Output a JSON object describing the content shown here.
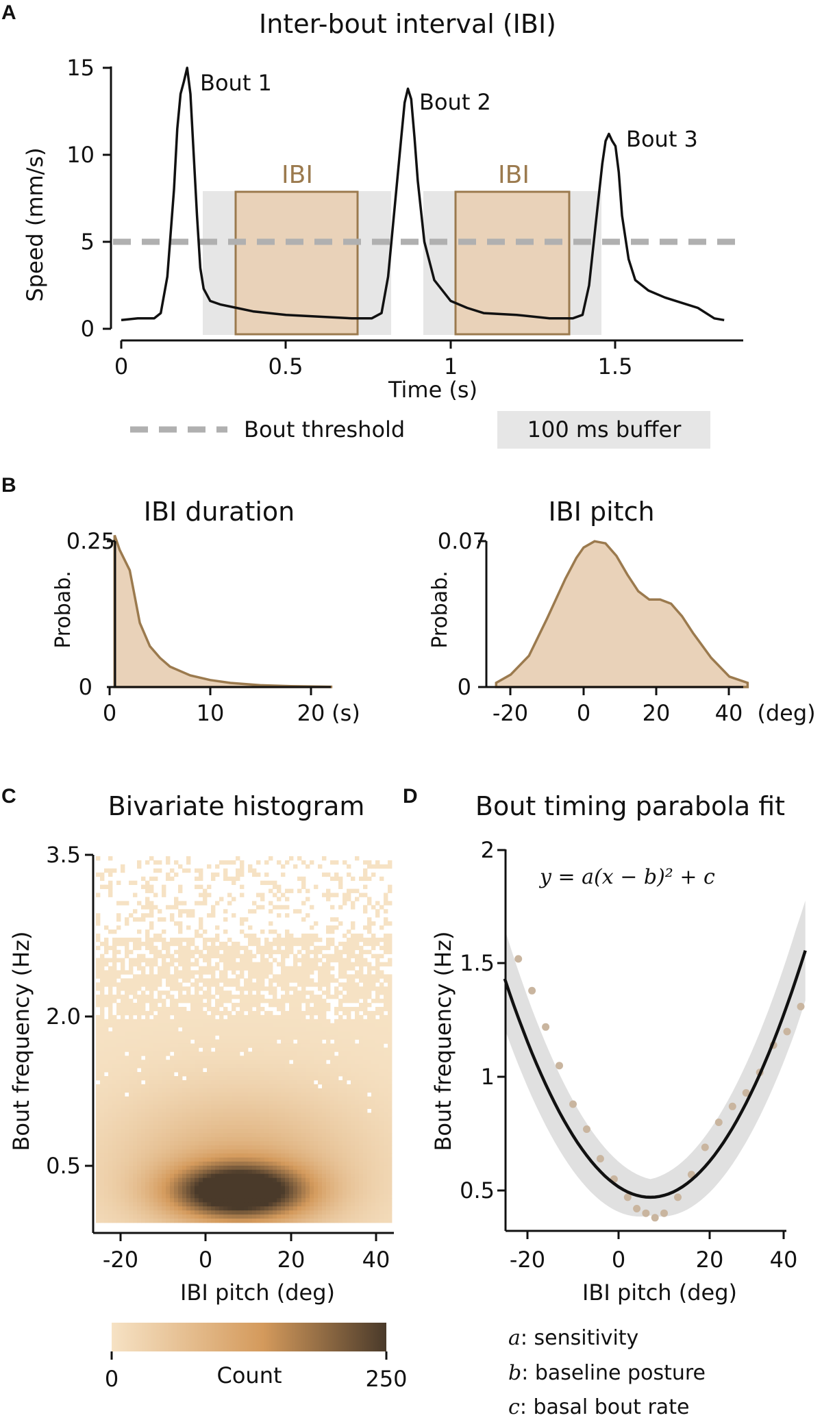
{
  "colors": {
    "ibi_fill": "#e9d2b9",
    "ibi_stroke": "#9b7a4e",
    "buffer": "#e6e6e6",
    "threshold": "#b0b0b0",
    "trace": "#111111",
    "fit_band": "#e0e0e0",
    "points": "#c9b59f",
    "cmap_low": "#f6e2c4",
    "cmap_mid": "#d49a5c",
    "cmap_high": "#4a3a2a"
  },
  "panel_a": {
    "letter": "A",
    "title": "Inter-bout interval (IBI)",
    "ylabel": "Speed (mm/s)",
    "xlabel": "Time (s)",
    "yticks": [
      "0",
      "5",
      "10",
      "15"
    ],
    "xticks": [
      "0",
      "0.5",
      "1",
      "1.5"
    ],
    "bout_labels": [
      "Bout 1",
      "Bout 2",
      "Bout 3"
    ],
    "ibi_label": "IBI",
    "legend_threshold": "Bout threshold",
    "legend_buffer": "100 ms buffer"
  },
  "panel_b": {
    "letter": "B",
    "left_title": "IBI duration",
    "right_title": "IBI pitch",
    "ylabel": "Probab.",
    "left_yticks": [
      "0",
      "0.25"
    ],
    "left_xticks": [
      "0",
      "10",
      "20"
    ],
    "left_unit": "(s)",
    "right_yticks": [
      "0",
      "0.07"
    ],
    "right_xticks": [
      "-20",
      "0",
      "20",
      "40"
    ],
    "right_unit": "(deg)"
  },
  "panel_c": {
    "letter": "C",
    "title": "Bivariate histogram",
    "ylabel": "Bout frequency (Hz)",
    "xlabel": "IBI pitch (deg)",
    "yticks": [
      "0.5",
      "2.0",
      "3.5"
    ],
    "xticks": [
      "-20",
      "0",
      "20",
      "40"
    ],
    "colorbar_label": "Count",
    "colorbar_min": "0",
    "colorbar_max": "250"
  },
  "panel_d": {
    "letter": "D",
    "title": "Bout timing parabola fit",
    "equation": "y = a(x − b)² + c",
    "ylabel": "Bout frequency (Hz)",
    "xlabel": "IBI pitch (deg)",
    "yticks": [
      "0.5",
      "1",
      "1.5",
      "2"
    ],
    "xticks": [
      "-20",
      "0",
      "20",
      "40"
    ],
    "legend": [
      {
        "var": "a",
        "text": ": sensitivity"
      },
      {
        "var": "b",
        "text": ": baseline posture"
      },
      {
        "var": "c",
        "text": ": basal bout rate"
      }
    ]
  },
  "chart_data": [
    {
      "type": "line",
      "panel": "A",
      "title": "Inter-bout interval (IBI)",
      "xlabel": "Time (s)",
      "ylabel": "Speed (mm/s)",
      "xlim": [
        0,
        1.85
      ],
      "ylim": [
        0,
        15
      ],
      "threshold": 5,
      "series": [
        {
          "x": [
            0,
            0.05,
            0.1,
            0.12,
            0.14,
            0.16,
            0.17,
            0.18,
            0.19,
            0.2,
            0.21,
            0.22,
            0.23,
            0.24,
            0.25,
            0.27,
            0.3,
            0.35,
            0.4,
            0.5,
            0.6,
            0.7,
            0.76,
            0.79,
            0.81,
            0.83,
            0.85,
            0.86,
            0.87,
            0.88,
            0.89,
            0.9,
            0.92,
            0.95,
            1.0,
            1.05,
            1.1,
            1.2,
            1.3,
            1.37,
            1.4,
            1.42,
            1.44,
            1.46,
            1.47,
            1.48,
            1.49,
            1.5,
            1.51,
            1.52,
            1.54,
            1.56,
            1.6,
            1.65,
            1.7,
            1.75,
            1.8,
            1.83
          ],
          "y": [
            0.5,
            0.6,
            0.6,
            0.9,
            3.0,
            8.0,
            11.5,
            13.5,
            14.2,
            15.0,
            13.5,
            10.0,
            6.5,
            3.5,
            2.3,
            1.6,
            1.4,
            1.2,
            1.0,
            0.8,
            0.7,
            0.6,
            0.6,
            0.9,
            3.0,
            7.0,
            11.0,
            13.0,
            13.8,
            13.2,
            11.0,
            8.5,
            5.0,
            2.8,
            1.6,
            1.2,
            0.9,
            0.8,
            0.6,
            0.6,
            0.8,
            2.5,
            6.0,
            9.5,
            10.8,
            11.2,
            10.8,
            10.5,
            9.0,
            6.5,
            4.0,
            2.8,
            2.2,
            1.8,
            1.5,
            1.2,
            0.6,
            0.5
          ]
        }
      ],
      "ibi_windows": [
        [
          0.35,
          0.72
        ],
        [
          1.02,
          1.36
        ]
      ],
      "buffer_windows": [
        [
          0.25,
          0.82
        ],
        [
          0.92,
          1.46
        ]
      ],
      "bout_peaks": [
        [
          0.2,
          15.0
        ],
        [
          0.87,
          13.8
        ],
        [
          1.49,
          11.2
        ]
      ]
    },
    {
      "type": "area",
      "panel": "B-left",
      "title": "IBI duration",
      "ylabel": "Probab.",
      "xlim": [
        0,
        22
      ],
      "ylim": [
        0,
        0.25
      ],
      "x": [
        0.5,
        0.7,
        1,
        2,
        3,
        4,
        5,
        6,
        8,
        10,
        12,
        15,
        18,
        22
      ],
      "y": [
        0.26,
        0.25,
        0.235,
        0.2,
        0.11,
        0.07,
        0.05,
        0.035,
        0.02,
        0.012,
        0.007,
        0.003,
        0.0015,
        0.0005
      ]
    },
    {
      "type": "area",
      "panel": "B-right",
      "title": "IBI pitch",
      "ylabel": "Probab.",
      "xlim": [
        -25,
        45
      ],
      "ylim": [
        0,
        0.07
      ],
      "x": [
        -24,
        -20,
        -15,
        -10,
        -5,
        -2,
        0,
        3,
        6,
        9,
        12,
        15,
        18,
        21,
        24,
        27,
        30,
        35,
        40,
        45
      ],
      "y": [
        0.002,
        0.006,
        0.015,
        0.033,
        0.052,
        0.062,
        0.067,
        0.07,
        0.069,
        0.063,
        0.054,
        0.046,
        0.042,
        0.042,
        0.04,
        0.034,
        0.026,
        0.014,
        0.005,
        0.002
      ]
    },
    {
      "type": "heatmap",
      "panel": "C",
      "title": "Bivariate histogram",
      "xlabel": "IBI pitch (deg)",
      "ylabel": "Bout frequency (Hz)",
      "xlim": [
        -25,
        45
      ],
      "ylim_display": [
        "0.5",
        "2.0",
        "3.5"
      ],
      "peak": {
        "x": 8,
        "y_display": "0.3",
        "count": 250
      },
      "colorbar": {
        "label": "Count",
        "min": 0,
        "max": 250
      }
    },
    {
      "type": "scatter",
      "panel": "D",
      "title": "Bout timing parabola fit",
      "xlabel": "IBI pitch (deg)",
      "ylabel": "Bout frequency (Hz)",
      "xlim": [
        -25,
        42
      ],
      "ylim": [
        0.3,
        2
      ],
      "points_x": [
        -22,
        -19,
        -16,
        -13,
        -10,
        -7,
        -4,
        -1,
        2,
        4,
        6,
        8,
        10,
        13,
        16,
        19,
        22,
        25,
        28,
        31,
        34,
        37,
        40
      ],
      "points_y": [
        1.52,
        1.38,
        1.22,
        1.05,
        0.88,
        0.77,
        0.64,
        0.55,
        0.47,
        0.42,
        0.4,
        0.38,
        0.4,
        0.47,
        0.57,
        0.69,
        0.8,
        0.87,
        0.93,
        1.02,
        1.14,
        1.2,
        1.31
      ],
      "fit": {
        "a": 0.00094,
        "b": 7,
        "c": 0.47
      },
      "band_halfwidth": [
        0.22,
        0.08
      ]
    }
  ]
}
